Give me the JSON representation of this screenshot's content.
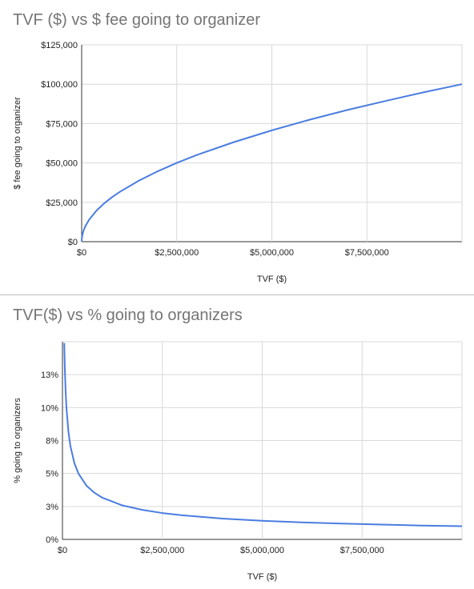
{
  "chart_data": [
    {
      "type": "line",
      "title": "TVF ($) vs $ fee going to organizer",
      "xlabel": "TVF ($)",
      "ylabel": "$ fee going to organizer",
      "xlim": [
        0,
        10000000
      ],
      "ylim": [
        0,
        125000
      ],
      "x_ticks": [
        "$0",
        "$2,500,000",
        "$5,000,000",
        "$7,500,000"
      ],
      "x_tick_values": [
        0,
        2500000,
        5000000,
        7500000
      ],
      "y_ticks": [
        "$0",
        "$25,000",
        "$50,000",
        "$75,000",
        "$100,000",
        "$125,000"
      ],
      "y_tick_values": [
        0,
        25000,
        50000,
        75000,
        100000,
        125000
      ],
      "grid": true,
      "series": [
        {
          "color": "#4a7de0",
          "x": [
            0,
            5000,
            20000,
            50000,
            100000,
            200000,
            400000,
            600000,
            800000,
            1000000,
            1500000,
            2000000,
            2500000,
            3000000,
            4000000,
            5000000,
            6000000,
            7000000,
            8000000,
            9000000,
            10000000
          ],
          "y": [
            0,
            2200,
            4500,
            7100,
            10000,
            14100,
            20000,
            24500,
            28300,
            31600,
            38700,
            44700,
            50000,
            54800,
            63200,
            70700,
            77500,
            83700,
            89400,
            94900,
            100000
          ]
        }
      ]
    },
    {
      "type": "line",
      "title": "TVF($) vs % going to organizers",
      "xlabel": "TVF ($)",
      "ylabel": "% going to organizers",
      "xlim": [
        0,
        10000000
      ],
      "ylim": [
        0,
        0.15
      ],
      "x_ticks": [
        "$0",
        "$2,500,000",
        "$5,000,000",
        "$7,500,000"
      ],
      "x_tick_values": [
        0,
        2500000,
        5000000,
        7500000
      ],
      "y_ticks": [
        "0%",
        "3%",
        "5%",
        "8%",
        "10%",
        "13%"
      ],
      "y_tick_values": [
        0,
        0.025,
        0.05,
        0.075,
        0.1,
        0.125
      ],
      "grid": true,
      "series": [
        {
          "color": "#4a7de0",
          "x": [
            45000,
            50000,
            60000,
            80000,
            100000,
            150000,
            200000,
            300000,
            400000,
            600000,
            800000,
            1000000,
            1500000,
            2000000,
            2500000,
            3000000,
            4000000,
            5000000,
            6000000,
            7000000,
            8000000,
            9000000,
            10000000
          ],
          "y": [
            0.149,
            0.1414,
            0.1291,
            0.1118,
            0.1,
            0.0816,
            0.0707,
            0.0577,
            0.05,
            0.0408,
            0.0354,
            0.0316,
            0.0258,
            0.0224,
            0.02,
            0.0183,
            0.0158,
            0.0141,
            0.0129,
            0.012,
            0.0112,
            0.0105,
            0.01
          ]
        }
      ]
    }
  ]
}
